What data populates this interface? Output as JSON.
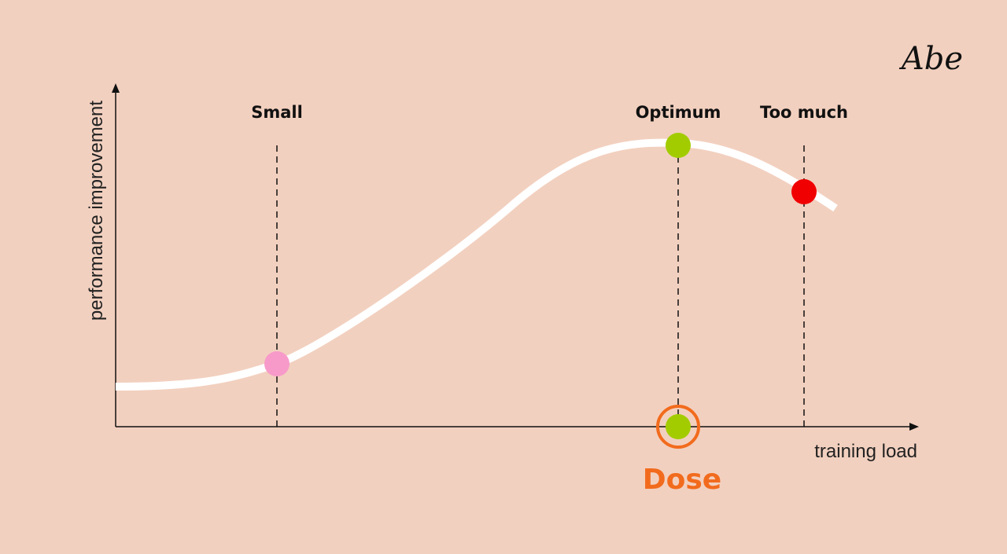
{
  "logo": "Abe",
  "axes": {
    "y_label": "performance improvement",
    "x_label": "training load"
  },
  "markers": [
    {
      "label": "Small"
    },
    {
      "label": "Optimum"
    },
    {
      "label": "Too much"
    }
  ],
  "dose": "Dose"
}
